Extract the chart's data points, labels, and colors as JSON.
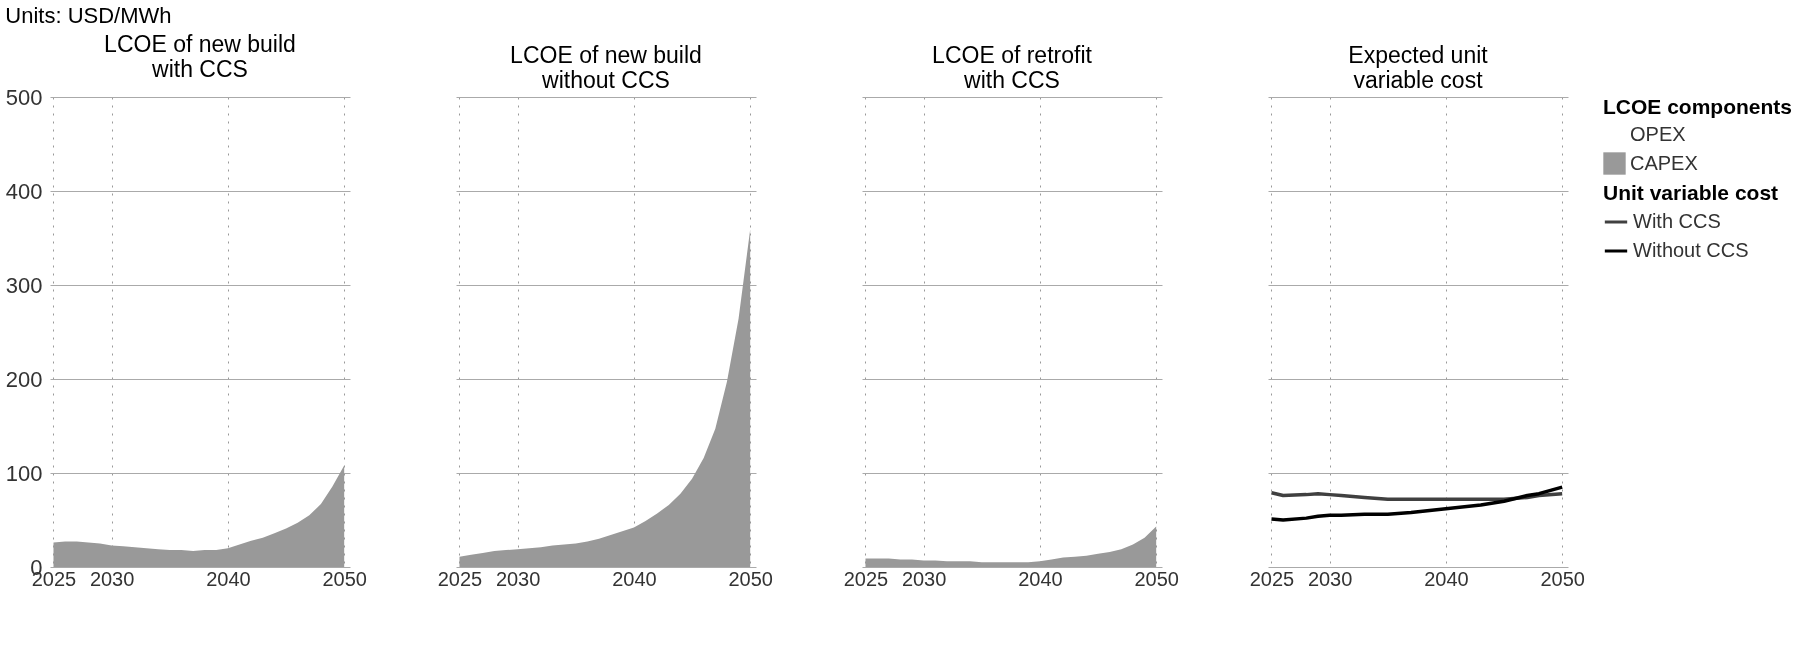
{
  "chart_data": [
    {
      "type": "area",
      "title": "LCOE of new build with CCS",
      "annotations": [
        "Units: USD/MWh"
      ],
      "x": [
        2025,
        2026,
        2027,
        2028,
        2029,
        2030,
        2031,
        2032,
        2033,
        2034,
        2035,
        2036,
        2037,
        2038,
        2039,
        2040,
        2041,
        2042,
        2043,
        2044,
        2045,
        2046,
        2047,
        2048,
        2049,
        2050
      ],
      "legend": "right",
      "legend_title": "LCOE components",
      "grid": true,
      "xlim": [
        2024.7,
        2050.5
      ],
      "ylim": [
        0,
        500
      ],
      "xticks": [
        2025,
        2030,
        2040,
        2050
      ],
      "yticks": [
        0,
        100,
        200,
        300,
        400,
        500
      ],
      "series": [
        {
          "name": "CAPEX",
          "color": "#999999",
          "values": [
            26,
            27,
            27,
            26,
            25,
            23,
            22,
            21,
            20,
            19,
            18,
            18,
            17,
            18,
            18,
            20,
            24,
            28,
            31,
            36,
            41,
            47,
            55,
            67,
            86,
            108
          ]
        },
        {
          "name": "OPEX",
          "values": [
            null,
            null,
            null,
            null,
            null,
            null,
            null,
            null,
            null,
            null,
            null,
            null,
            null,
            null,
            null,
            null,
            null,
            null,
            null,
            null,
            null,
            null,
            null,
            null,
            null,
            null
          ]
        }
      ]
    },
    {
      "type": "area",
      "title": "LCOE of new build without CCS",
      "x": [
        2025,
        2026,
        2027,
        2028,
        2029,
        2030,
        2031,
        2032,
        2033,
        2034,
        2035,
        2036,
        2037,
        2038,
        2039,
        2040,
        2041,
        2042,
        2043,
        2044,
        2045,
        2046,
        2047,
        2048,
        2049,
        2050
      ],
      "grid": true,
      "tick_labels": "x",
      "xlim": [
        2024.7,
        2050.5
      ],
      "ylim": [
        0,
        500
      ],
      "xticks": [
        2025,
        2030,
        2040,
        2050
      ],
      "yticks": [
        0,
        100,
        200,
        300,
        400,
        500
      ],
      "series": [
        {
          "name": "CAPEX",
          "color": "#999999",
          "values": [
            11,
            13,
            15,
            17,
            18,
            19,
            20,
            21,
            23,
            24,
            25,
            27,
            30,
            34,
            38,
            42,
            49,
            57,
            66,
            78,
            94,
            116,
            147,
            197,
            264,
            359
          ]
        }
      ]
    },
    {
      "type": "area",
      "title": "LCOE of retrofit with CCS",
      "x": [
        2025,
        2026,
        2027,
        2028,
        2029,
        2030,
        2031,
        2032,
        2033,
        2034,
        2035,
        2036,
        2037,
        2038,
        2039,
        2040,
        2041,
        2042,
        2043,
        2044,
        2045,
        2046,
        2047,
        2048,
        2049,
        2050
      ],
      "grid": true,
      "tick_labels": "x",
      "xlim": [
        2024.7,
        2050.5
      ],
      "ylim": [
        0,
        500
      ],
      "xticks": [
        2025,
        2030,
        2040,
        2050
      ],
      "yticks": [
        0,
        100,
        200,
        300,
        400,
        500
      ],
      "series": [
        {
          "name": "CAPEX",
          "color": "#999999",
          "values": [
            9,
            9,
            9,
            8,
            8,
            7,
            7,
            6,
            6,
            6,
            5,
            5,
            5,
            5,
            5,
            6,
            8,
            10,
            11,
            12,
            14,
            16,
            19,
            24,
            31,
            43
          ]
        }
      ]
    },
    {
      "type": "line",
      "title": "Expected unit variable cost",
      "x": [
        2025,
        2026,
        2028,
        2029,
        2030,
        2031,
        2033,
        2035,
        2037,
        2040,
        2043,
        2045,
        2047,
        2048,
        2050
      ],
      "legend": "right",
      "legend_title": "Unit variable cost",
      "grid": true,
      "tick_labels": "x",
      "line_style": "solid",
      "xlim": [
        2024.7,
        2050.5
      ],
      "ylim": [
        0,
        500
      ],
      "xticks": [
        2025,
        2030,
        2040,
        2050
      ],
      "yticks": [
        0,
        100,
        200,
        300,
        400,
        500
      ],
      "series": [
        {
          "name": "With CCS",
          "color": "#404040",
          "values": [
            79,
            76,
            77,
            78,
            77,
            76,
            74,
            72,
            72,
            72,
            72,
            72,
            74,
            76,
            78
          ]
        },
        {
          "name": "Without CCS",
          "color": "#000000",
          "values": [
            51,
            50,
            52,
            54,
            55,
            55,
            56,
            56,
            58,
            62,
            66,
            70,
            76,
            78,
            85
          ]
        }
      ]
    }
  ]
}
